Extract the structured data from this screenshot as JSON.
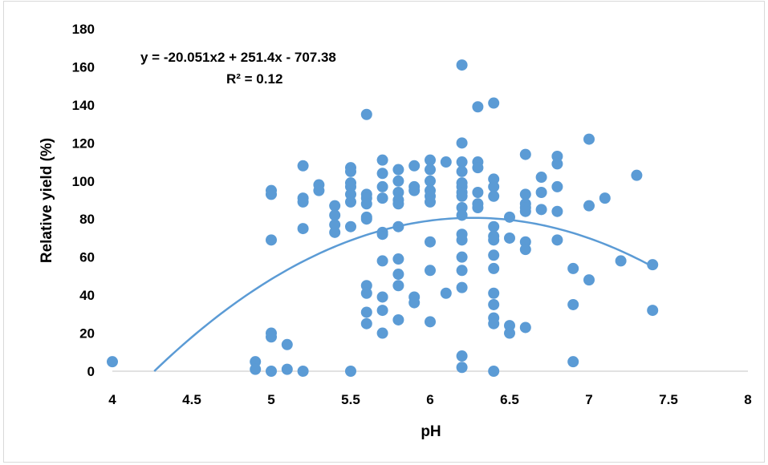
{
  "chart_data": {
    "type": "scatter",
    "xlabel": "pH",
    "ylabel": "Relative yield (%)",
    "xlim": [
      4,
      8
    ],
    "ylim": [
      0,
      180
    ],
    "x_ticks": [
      "4",
      "4.5",
      "5",
      "5.5",
      "6",
      "6.5",
      "7",
      "7.5",
      "8"
    ],
    "y_ticks": [
      "0",
      "20",
      "40",
      "60",
      "80",
      "100",
      "120",
      "140",
      "160",
      "180"
    ],
    "grid": false,
    "legend": "none",
    "point_color": "#5b9bd5",
    "trendline": {
      "type": "polynomial",
      "coefficients": [
        -20.051,
        251.4,
        -707.38
      ],
      "equation": "y = -20.051x2 + 251.4x - 707.38",
      "r_squared_label": "R² = 0.12",
      "color": "#5b9bd5"
    },
    "points": [
      [
        4.0,
        5
      ],
      [
        4.9,
        5
      ],
      [
        4.9,
        1
      ],
      [
        5.0,
        95
      ],
      [
        5.0,
        93
      ],
      [
        5.0,
        69
      ],
      [
        5.0,
        20
      ],
      [
        5.0,
        18
      ],
      [
        5.0,
        0
      ],
      [
        5.1,
        14
      ],
      [
        5.1,
        1
      ],
      [
        5.2,
        108
      ],
      [
        5.2,
        91
      ],
      [
        5.2,
        89
      ],
      [
        5.2,
        75
      ],
      [
        5.2,
        0
      ],
      [
        5.3,
        98
      ],
      [
        5.3,
        95
      ],
      [
        5.4,
        87
      ],
      [
        5.4,
        82
      ],
      [
        5.4,
        77
      ],
      [
        5.4,
        73
      ],
      [
        5.5,
        107
      ],
      [
        5.5,
        105
      ],
      [
        5.5,
        99
      ],
      [
        5.5,
        97
      ],
      [
        5.5,
        93
      ],
      [
        5.5,
        89
      ],
      [
        5.5,
        76
      ],
      [
        5.5,
        0
      ],
      [
        5.6,
        135
      ],
      [
        5.6,
        93
      ],
      [
        5.6,
        91
      ],
      [
        5.6,
        88
      ],
      [
        5.6,
        81
      ],
      [
        5.6,
        80
      ],
      [
        5.6,
        45
      ],
      [
        5.6,
        41
      ],
      [
        5.6,
        31
      ],
      [
        5.6,
        25
      ],
      [
        5.7,
        111
      ],
      [
        5.7,
        104
      ],
      [
        5.7,
        97
      ],
      [
        5.7,
        91
      ],
      [
        5.7,
        73
      ],
      [
        5.7,
        72
      ],
      [
        5.7,
        58
      ],
      [
        5.7,
        39
      ],
      [
        5.7,
        32
      ],
      [
        5.7,
        20
      ],
      [
        5.8,
        106
      ],
      [
        5.8,
        100
      ],
      [
        5.8,
        94
      ],
      [
        5.8,
        90
      ],
      [
        5.8,
        88
      ],
      [
        5.8,
        76
      ],
      [
        5.8,
        59
      ],
      [
        5.8,
        51
      ],
      [
        5.8,
        45
      ],
      [
        5.8,
        27
      ],
      [
        5.9,
        108
      ],
      [
        5.9,
        97
      ],
      [
        5.9,
        95
      ],
      [
        5.9,
        39
      ],
      [
        5.9,
        36
      ],
      [
        6.0,
        111
      ],
      [
        6.0,
        106
      ],
      [
        6.0,
        100
      ],
      [
        6.0,
        95
      ],
      [
        6.0,
        92
      ],
      [
        6.0,
        89
      ],
      [
        6.0,
        68
      ],
      [
        6.0,
        53
      ],
      [
        6.0,
        26
      ],
      [
        6.1,
        110
      ],
      [
        6.1,
        41
      ],
      [
        6.2,
        161
      ],
      [
        6.2,
        120
      ],
      [
        6.2,
        110
      ],
      [
        6.2,
        105
      ],
      [
        6.2,
        99
      ],
      [
        6.2,
        97
      ],
      [
        6.2,
        94
      ],
      [
        6.2,
        92
      ],
      [
        6.2,
        86
      ],
      [
        6.2,
        82
      ],
      [
        6.2,
        72
      ],
      [
        6.2,
        69
      ],
      [
        6.2,
        60
      ],
      [
        6.2,
        53
      ],
      [
        6.2,
        44
      ],
      [
        6.2,
        8
      ],
      [
        6.2,
        2
      ],
      [
        6.3,
        139
      ],
      [
        6.3,
        110
      ],
      [
        6.3,
        107
      ],
      [
        6.3,
        94
      ],
      [
        6.3,
        88
      ],
      [
        6.3,
        86
      ],
      [
        6.4,
        141
      ],
      [
        6.4,
        101
      ],
      [
        6.4,
        97
      ],
      [
        6.4,
        92
      ],
      [
        6.4,
        76
      ],
      [
        6.4,
        71
      ],
      [
        6.4,
        69
      ],
      [
        6.4,
        61
      ],
      [
        6.4,
        54
      ],
      [
        6.4,
        41
      ],
      [
        6.4,
        35
      ],
      [
        6.4,
        28
      ],
      [
        6.4,
        25
      ],
      [
        6.4,
        0
      ],
      [
        6.5,
        81
      ],
      [
        6.5,
        70
      ],
      [
        6.5,
        24
      ],
      [
        6.5,
        20
      ],
      [
        6.6,
        114
      ],
      [
        6.6,
        93
      ],
      [
        6.6,
        88
      ],
      [
        6.6,
        86
      ],
      [
        6.6,
        84
      ],
      [
        6.6,
        68
      ],
      [
        6.6,
        64
      ],
      [
        6.6,
        23
      ],
      [
        6.7,
        102
      ],
      [
        6.7,
        94
      ],
      [
        6.7,
        85
      ],
      [
        6.8,
        113
      ],
      [
        6.8,
        109
      ],
      [
        6.8,
        97
      ],
      [
        6.8,
        84
      ],
      [
        6.8,
        69
      ],
      [
        6.9,
        54
      ],
      [
        6.9,
        35
      ],
      [
        6.9,
        5
      ],
      [
        7.0,
        122
      ],
      [
        7.0,
        87
      ],
      [
        7.0,
        48
      ],
      [
        7.1,
        91
      ],
      [
        7.2,
        58
      ],
      [
        7.3,
        103
      ],
      [
        7.4,
        56
      ],
      [
        7.4,
        32
      ]
    ]
  }
}
